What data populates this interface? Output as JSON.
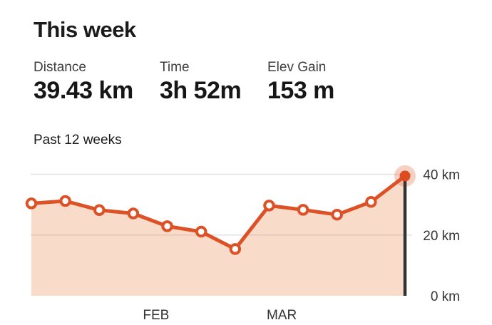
{
  "header": {
    "title": "This week"
  },
  "stats": [
    {
      "label": "Distance",
      "value": "39.43 km"
    },
    {
      "label": "Time",
      "value": "3h 52m"
    },
    {
      "label": "Elev Gain",
      "value": "153 m"
    }
  ],
  "chart": {
    "heading": "Past 12 weeks"
  },
  "chart_data": {
    "type": "area",
    "title": "Past 12 weeks",
    "x_unit": "week",
    "num_weeks": 12,
    "ylabel": "Distance",
    "ylim": [
      0,
      40
    ],
    "values_km": [
      30.4,
      31.2,
      28.2,
      27.1,
      22.9,
      21.1,
      15.4,
      29.7,
      28.3,
      26.7,
      30.9,
      39.43
    ],
    "y_ticks": [
      {
        "value": 40,
        "label": "40 km"
      },
      {
        "value": 20,
        "label": "20 km"
      },
      {
        "value": 0,
        "label": "0 km"
      }
    ],
    "month_labels": [
      {
        "label": "FEB",
        "week_index": 3.67
      },
      {
        "label": "MAR",
        "week_index": 7.37
      }
    ],
    "highlight_last_point": true,
    "grid": true,
    "legend": "none",
    "colors": {
      "line": "#dd5127",
      "fill": "rgba(230,126,59,0.28)",
      "marker_fill": "#ffffff",
      "last_dot": "#dc4c20",
      "halo": "rgba(221,85,40,0.28)",
      "current_week_bar": "#333333",
      "gridline": "#e2e2e2",
      "axis_text": "#333333"
    }
  }
}
